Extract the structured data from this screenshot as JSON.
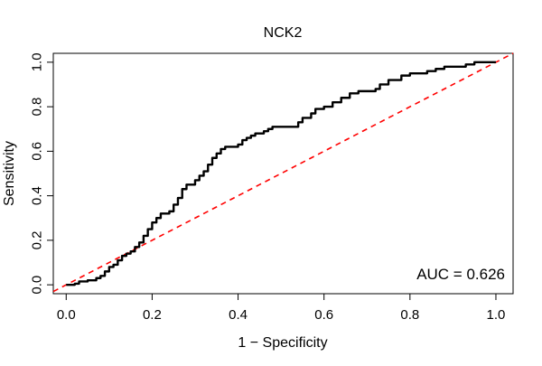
{
  "chart_data": {
    "type": "line",
    "title": "NCK2",
    "xlabel": "1 − Specificity",
    "ylabel": "Sensitivity",
    "xlim": [
      -0.03,
      1.04
    ],
    "ylim": [
      -0.04,
      1.04
    ],
    "xticks": [
      {
        "value": 0.0,
        "label": "0.0"
      },
      {
        "value": 0.2,
        "label": "0.2"
      },
      {
        "value": 0.4,
        "label": "0.4"
      },
      {
        "value": 0.6,
        "label": "0.6"
      },
      {
        "value": 0.8,
        "label": "0.8"
      },
      {
        "value": 1.0,
        "label": "1.0"
      }
    ],
    "yticks": [
      {
        "value": 0.0,
        "label": "0.0"
      },
      {
        "value": 0.2,
        "label": "0.2"
      },
      {
        "value": 0.4,
        "label": "0.4"
      },
      {
        "value": 0.6,
        "label": "0.6"
      },
      {
        "value": 0.8,
        "label": "0.8"
      },
      {
        "value": 1.0,
        "label": "1.0"
      }
    ],
    "grid": false,
    "annotation": "AUC = 0.626",
    "annotation_position": "bottom-right",
    "series": [
      {
        "style": "solid",
        "color": "#000000",
        "points": [
          [
            0.0,
            0.0
          ],
          [
            0.02,
            0.005
          ],
          [
            0.03,
            0.015
          ],
          [
            0.05,
            0.02
          ],
          [
            0.07,
            0.03
          ],
          [
            0.08,
            0.04
          ],
          [
            0.09,
            0.06
          ],
          [
            0.1,
            0.08
          ],
          [
            0.11,
            0.09
          ],
          [
            0.12,
            0.11
          ],
          [
            0.13,
            0.13
          ],
          [
            0.14,
            0.14
          ],
          [
            0.15,
            0.15
          ],
          [
            0.16,
            0.17
          ],
          [
            0.17,
            0.19
          ],
          [
            0.18,
            0.22
          ],
          [
            0.19,
            0.25
          ],
          [
            0.2,
            0.28
          ],
          [
            0.21,
            0.3
          ],
          [
            0.22,
            0.32
          ],
          [
            0.23,
            0.32
          ],
          [
            0.24,
            0.33
          ],
          [
            0.25,
            0.36
          ],
          [
            0.26,
            0.39
          ],
          [
            0.27,
            0.43
          ],
          [
            0.28,
            0.45
          ],
          [
            0.3,
            0.47
          ],
          [
            0.31,
            0.49
          ],
          [
            0.32,
            0.51
          ],
          [
            0.33,
            0.54
          ],
          [
            0.34,
            0.57
          ],
          [
            0.35,
            0.59
          ],
          [
            0.36,
            0.61
          ],
          [
            0.37,
            0.62
          ],
          [
            0.38,
            0.62
          ],
          [
            0.4,
            0.63
          ],
          [
            0.41,
            0.65
          ],
          [
            0.42,
            0.66
          ],
          [
            0.43,
            0.67
          ],
          [
            0.44,
            0.68
          ],
          [
            0.46,
            0.69
          ],
          [
            0.47,
            0.7
          ],
          [
            0.48,
            0.71
          ],
          [
            0.5,
            0.71
          ],
          [
            0.52,
            0.71
          ],
          [
            0.54,
            0.73
          ],
          [
            0.55,
            0.75
          ],
          [
            0.57,
            0.77
          ],
          [
            0.58,
            0.79
          ],
          [
            0.6,
            0.8
          ],
          [
            0.62,
            0.82
          ],
          [
            0.64,
            0.84
          ],
          [
            0.66,
            0.86
          ],
          [
            0.68,
            0.87
          ],
          [
            0.7,
            0.87
          ],
          [
            0.72,
            0.88
          ],
          [
            0.73,
            0.9
          ],
          [
            0.75,
            0.92
          ],
          [
            0.78,
            0.94
          ],
          [
            0.8,
            0.95
          ],
          [
            0.83,
            0.95
          ],
          [
            0.84,
            0.96
          ],
          [
            0.86,
            0.97
          ],
          [
            0.88,
            0.98
          ],
          [
            0.9,
            0.98
          ],
          [
            0.92,
            0.98
          ],
          [
            0.93,
            0.99
          ],
          [
            0.95,
            1.0
          ],
          [
            1.0,
            1.0
          ]
        ]
      },
      {
        "style": "dashed",
        "color": "#ff0000",
        "points": [
          [
            -0.03,
            -0.03
          ],
          [
            1.04,
            1.04
          ]
        ]
      }
    ]
  }
}
